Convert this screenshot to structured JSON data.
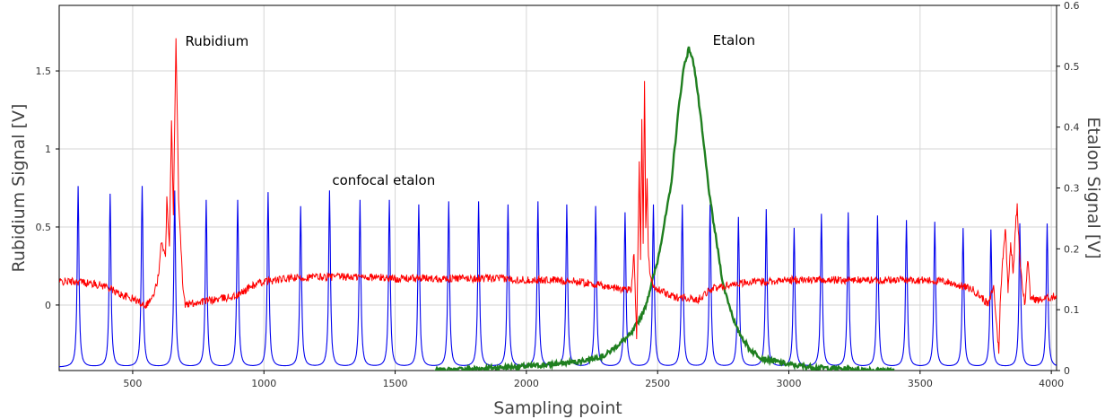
{
  "chart_data": {
    "type": "line",
    "title": "",
    "xlabel": "Sampling point",
    "ylabel_left": "Rubidium Signal [V]",
    "ylabel_right": "Etalon Signal [V]",
    "xlim": [
      220,
      4020
    ],
    "ylim_left": [
      -0.42,
      1.92
    ],
    "ylim_right": [
      0,
      0.6
    ],
    "x_ticks": [
      500,
      1000,
      1500,
      2000,
      2500,
      3000,
      3500,
      4000
    ],
    "y_ticks_left": [
      0,
      0.5,
      1,
      1.5
    ],
    "y_ticks_right": [
      0,
      0.1,
      0.2,
      0.3,
      0.4,
      0.5,
      0.6
    ],
    "x_tick_labels": [
      "500",
      "1000",
      "1500",
      "2000",
      "2500",
      "3000",
      "3500",
      "4000"
    ],
    "y_tick_labels_left": [
      "0",
      "0.5",
      "1",
      "1.5"
    ],
    "y_tick_labels_right": [
      "0",
      "0.1",
      "0.2",
      "0.3",
      "0.4",
      "0.5",
      "0.6"
    ],
    "grid": true,
    "series": [
      {
        "name": "Rubidium",
        "axis": "left",
        "color": "#ff0000",
        "points": [
          [
            220,
            0.15
          ],
          [
            300,
            0.15
          ],
          [
            400,
            0.12
          ],
          [
            450,
            0.07
          ],
          [
            500,
            0.04
          ],
          [
            550,
            0.0
          ],
          [
            580,
            0.06
          ],
          [
            600,
            0.2
          ],
          [
            610,
            0.42
          ],
          [
            625,
            0.3
          ],
          [
            630,
            0.68
          ],
          [
            640,
            0.4
          ],
          [
            648,
            1.2
          ],
          [
            655,
            0.6
          ],
          [
            665,
            1.7
          ],
          [
            675,
            0.7
          ],
          [
            690,
            0.15
          ],
          [
            700,
            0.0
          ],
          [
            750,
            0.02
          ],
          [
            800,
            0.03
          ],
          [
            900,
            0.06
          ],
          [
            950,
            0.12
          ],
          [
            1000,
            0.15
          ],
          [
            1100,
            0.17
          ],
          [
            1200,
            0.18
          ],
          [
            1300,
            0.18
          ],
          [
            1400,
            0.18
          ],
          [
            1500,
            0.17
          ],
          [
            1600,
            0.17
          ],
          [
            1700,
            0.17
          ],
          [
            1800,
            0.17
          ],
          [
            1900,
            0.17
          ],
          [
            2000,
            0.16
          ],
          [
            2100,
            0.16
          ],
          [
            2200,
            0.15
          ],
          [
            2300,
            0.12
          ],
          [
            2380,
            0.1
          ],
          [
            2400,
            0.1
          ],
          [
            2410,
            0.35
          ],
          [
            2420,
            -0.2
          ],
          [
            2430,
            0.9
          ],
          [
            2435,
            0.3
          ],
          [
            2440,
            1.2
          ],
          [
            2445,
            0.4
          ],
          [
            2450,
            1.45
          ],
          [
            2455,
            0.5
          ],
          [
            2460,
            0.8
          ],
          [
            2465,
            0.3
          ],
          [
            2475,
            0.15
          ],
          [
            2500,
            0.1
          ],
          [
            2560,
            0.05
          ],
          [
            2600,
            0.05
          ],
          [
            2650,
            0.03
          ],
          [
            2700,
            0.1
          ],
          [
            2800,
            0.14
          ],
          [
            3000,
            0.16
          ],
          [
            3200,
            0.16
          ],
          [
            3500,
            0.16
          ],
          [
            3600,
            0.15
          ],
          [
            3700,
            0.1
          ],
          [
            3740,
            0.04
          ],
          [
            3760,
            0.0
          ],
          [
            3780,
            0.12
          ],
          [
            3795,
            -0.2
          ],
          [
            3800,
            -0.3
          ],
          [
            3805,
            0.0
          ],
          [
            3815,
            0.3
          ],
          [
            3825,
            0.5
          ],
          [
            3835,
            0.1
          ],
          [
            3845,
            0.4
          ],
          [
            3855,
            0.2
          ],
          [
            3865,
            0.55
          ],
          [
            3870,
            0.63
          ],
          [
            3880,
            0.3
          ],
          [
            3890,
            0.12
          ],
          [
            3900,
            0.0
          ],
          [
            3910,
            0.3
          ],
          [
            3920,
            0.05
          ],
          [
            3950,
            0.03
          ],
          [
            4000,
            0.05
          ],
          [
            4020,
            0.06
          ]
        ]
      },
      {
        "name": "Etalon",
        "axis": "right",
        "color": "#1f7f1f",
        "points": [
          [
            1650,
            0.0
          ],
          [
            1800,
            0.003
          ],
          [
            1900,
            0.005
          ],
          [
            2000,
            0.007
          ],
          [
            2100,
            0.01
          ],
          [
            2200,
            0.015
          ],
          [
            2300,
            0.025
          ],
          [
            2400,
            0.06
          ],
          [
            2450,
            0.1
          ],
          [
            2500,
            0.18
          ],
          [
            2550,
            0.3
          ],
          [
            2580,
            0.43
          ],
          [
            2600,
            0.5
          ],
          [
            2620,
            0.53
          ],
          [
            2640,
            0.5
          ],
          [
            2660,
            0.43
          ],
          [
            2700,
            0.28
          ],
          [
            2750,
            0.14
          ],
          [
            2800,
            0.07
          ],
          [
            2850,
            0.035
          ],
          [
            2900,
            0.02
          ],
          [
            3000,
            0.01
          ],
          [
            3100,
            0.005
          ],
          [
            3200,
            0.003
          ],
          [
            3400,
            0.0
          ]
        ]
      },
      {
        "name": "confocal etalon",
        "axis": "left",
        "color": "#0000ee",
        "baseline": -0.4,
        "peaks": [
          [
            292,
            0.76
          ],
          [
            414,
            0.71
          ],
          [
            536,
            0.76
          ],
          [
            660,
            0.73
          ],
          [
            780,
            0.67
          ],
          [
            900,
            0.67
          ],
          [
            1016,
            0.72
          ],
          [
            1140,
            0.63
          ],
          [
            1250,
            0.73
          ],
          [
            1366,
            0.67
          ],
          [
            1478,
            0.67
          ],
          [
            1590,
            0.64
          ],
          [
            1704,
            0.66
          ],
          [
            1818,
            0.66
          ],
          [
            1930,
            0.64
          ],
          [
            2044,
            0.66
          ],
          [
            2154,
            0.64
          ],
          [
            2264,
            0.63
          ],
          [
            2376,
            0.59
          ],
          [
            2484,
            0.64
          ],
          [
            2594,
            0.64
          ],
          [
            2700,
            0.64
          ],
          [
            2808,
            0.56
          ],
          [
            2914,
            0.61
          ],
          [
            3020,
            0.49
          ],
          [
            3124,
            0.58
          ],
          [
            3226,
            0.59
          ],
          [
            3338,
            0.57
          ],
          [
            3448,
            0.54
          ],
          [
            3556,
            0.53
          ],
          [
            3664,
            0.49
          ],
          [
            3770,
            0.48
          ],
          [
            3880,
            0.52
          ],
          [
            3984,
            0.52
          ]
        ]
      }
    ],
    "annotations": [
      {
        "text": "Rubidium",
        "x": 700,
        "y": 1.66,
        "axis": "left"
      },
      {
        "text": "confocal etalon",
        "x": 1260,
        "y": 0.77,
        "axis": "left"
      },
      {
        "text": "Etalon",
        "x": 2710,
        "y": 0.535,
        "axis": "right"
      }
    ]
  }
}
